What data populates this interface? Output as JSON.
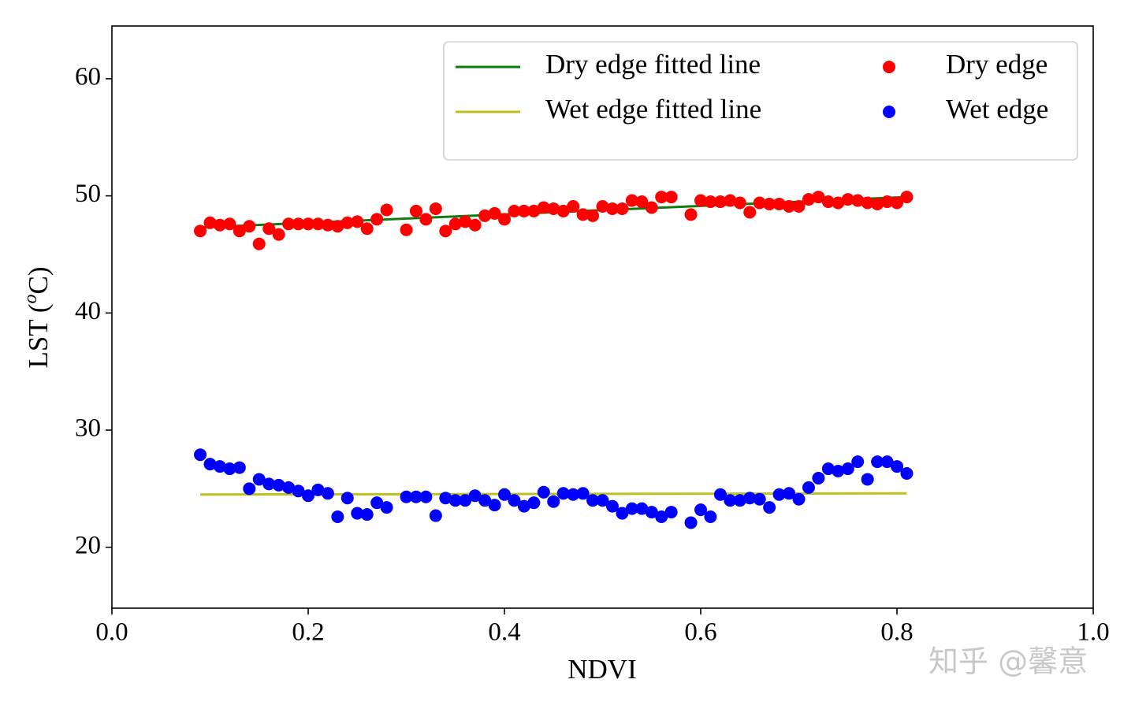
{
  "chart_data": {
    "type": "scatter",
    "xlabel": "NDVI",
    "ylabel": {
      "prefix": "LST (",
      "superscript": "o",
      "suffix": "C)"
    },
    "xlim": [
      0,
      1
    ],
    "ylim": [
      14.8,
      64.5
    ],
    "xticks": [
      {
        "value": 0,
        "label": "0.0"
      },
      0.2,
      0.4,
      0.6,
      0.8,
      {
        "value": 1,
        "label": "1.0"
      }
    ],
    "yticks": [
      20,
      30,
      40,
      50,
      60
    ],
    "legend": "upper right",
    "legend_columns": 2,
    "grid": false,
    "x": [
      0.09,
      0.1,
      0.11,
      0.12,
      0.13,
      0.14,
      0.15,
      0.16,
      0.17,
      0.18,
      0.19,
      0.2,
      0.21,
      0.22,
      0.23,
      0.24,
      0.25,
      0.26,
      0.27,
      0.28,
      0.3,
      0.31,
      0.32,
      0.33,
      0.34,
      0.35,
      0.36,
      0.37,
      0.38,
      0.39,
      0.4,
      0.41,
      0.42,
      0.43,
      0.44,
      0.45,
      0.46,
      0.47,
      0.48,
      0.49,
      0.5,
      0.51,
      0.52,
      0.53,
      0.54,
      0.55,
      0.56,
      0.57,
      0.59,
      0.6,
      0.61,
      0.62,
      0.63,
      0.64,
      0.65,
      0.66,
      0.67,
      0.68,
      0.69,
      0.7,
      0.71,
      0.72,
      0.73,
      0.74,
      0.75,
      0.76,
      0.77,
      0.78,
      0.79,
      0.8,
      0.81
    ],
    "series": [
      {
        "name": "Dry edge fitted line",
        "type": "line",
        "color": "#107c10",
        "x": [
          0.09,
          0.81
        ],
        "values": [
          47.3,
          49.9
        ]
      },
      {
        "name": "Wet edge fitted line",
        "type": "line",
        "color": "#bfbf1f",
        "x": [
          0.09,
          0.81
        ],
        "values": [
          24.5,
          24.6
        ]
      },
      {
        "name": "Dry edge",
        "type": "scatter",
        "color": "#ff0000",
        "values": [
          47.0,
          47.7,
          47.5,
          47.6,
          47.0,
          47.4,
          45.9,
          47.2,
          46.7,
          47.6,
          47.6,
          47.6,
          47.6,
          47.5,
          47.4,
          47.7,
          47.8,
          47.2,
          48.0,
          48.8,
          47.1,
          48.7,
          48.0,
          48.9,
          47.0,
          47.6,
          47.8,
          47.5,
          48.3,
          48.5,
          48.0,
          48.7,
          48.7,
          48.7,
          49.0,
          48.9,
          48.7,
          49.1,
          48.4,
          48.3,
          49.1,
          48.9,
          48.9,
          49.6,
          49.5,
          49.0,
          49.9,
          49.9,
          48.4,
          49.6,
          49.5,
          49.5,
          49.6,
          49.4,
          48.6,
          49.4,
          49.3,
          49.3,
          49.1,
          49.1,
          49.7,
          49.9,
          49.5,
          49.4,
          49.7,
          49.6,
          49.4,
          49.3,
          49.5,
          49.4,
          49.9
        ]
      },
      {
        "name": "Wet edge",
        "type": "scatter",
        "color": "#0000ff",
        "values": [
          27.9,
          27.1,
          26.9,
          26.7,
          26.8,
          25.0,
          25.8,
          25.4,
          25.3,
          25.1,
          24.8,
          24.4,
          24.9,
          24.6,
          22.6,
          24.2,
          22.9,
          22.8,
          23.8,
          23.4,
          24.3,
          24.3,
          24.3,
          22.7,
          24.2,
          24.0,
          24.0,
          24.4,
          24.0,
          23.6,
          24.5,
          24.0,
          23.5,
          23.8,
          24.7,
          23.9,
          24.6,
          24.5,
          24.6,
          24.0,
          24.0,
          23.5,
          22.9,
          23.3,
          23.3,
          23.0,
          22.6,
          23.0,
          22.1,
          23.2,
          22.6,
          24.5,
          24.0,
          24.0,
          24.2,
          24.1,
          23.4,
          24.5,
          24.6,
          24.1,
          25.1,
          25.9,
          26.7,
          26.5,
          26.7,
          27.3,
          25.8,
          27.3,
          27.3,
          26.9,
          26.3
        ]
      }
    ]
  },
  "watermark": "知乎 @馨意"
}
